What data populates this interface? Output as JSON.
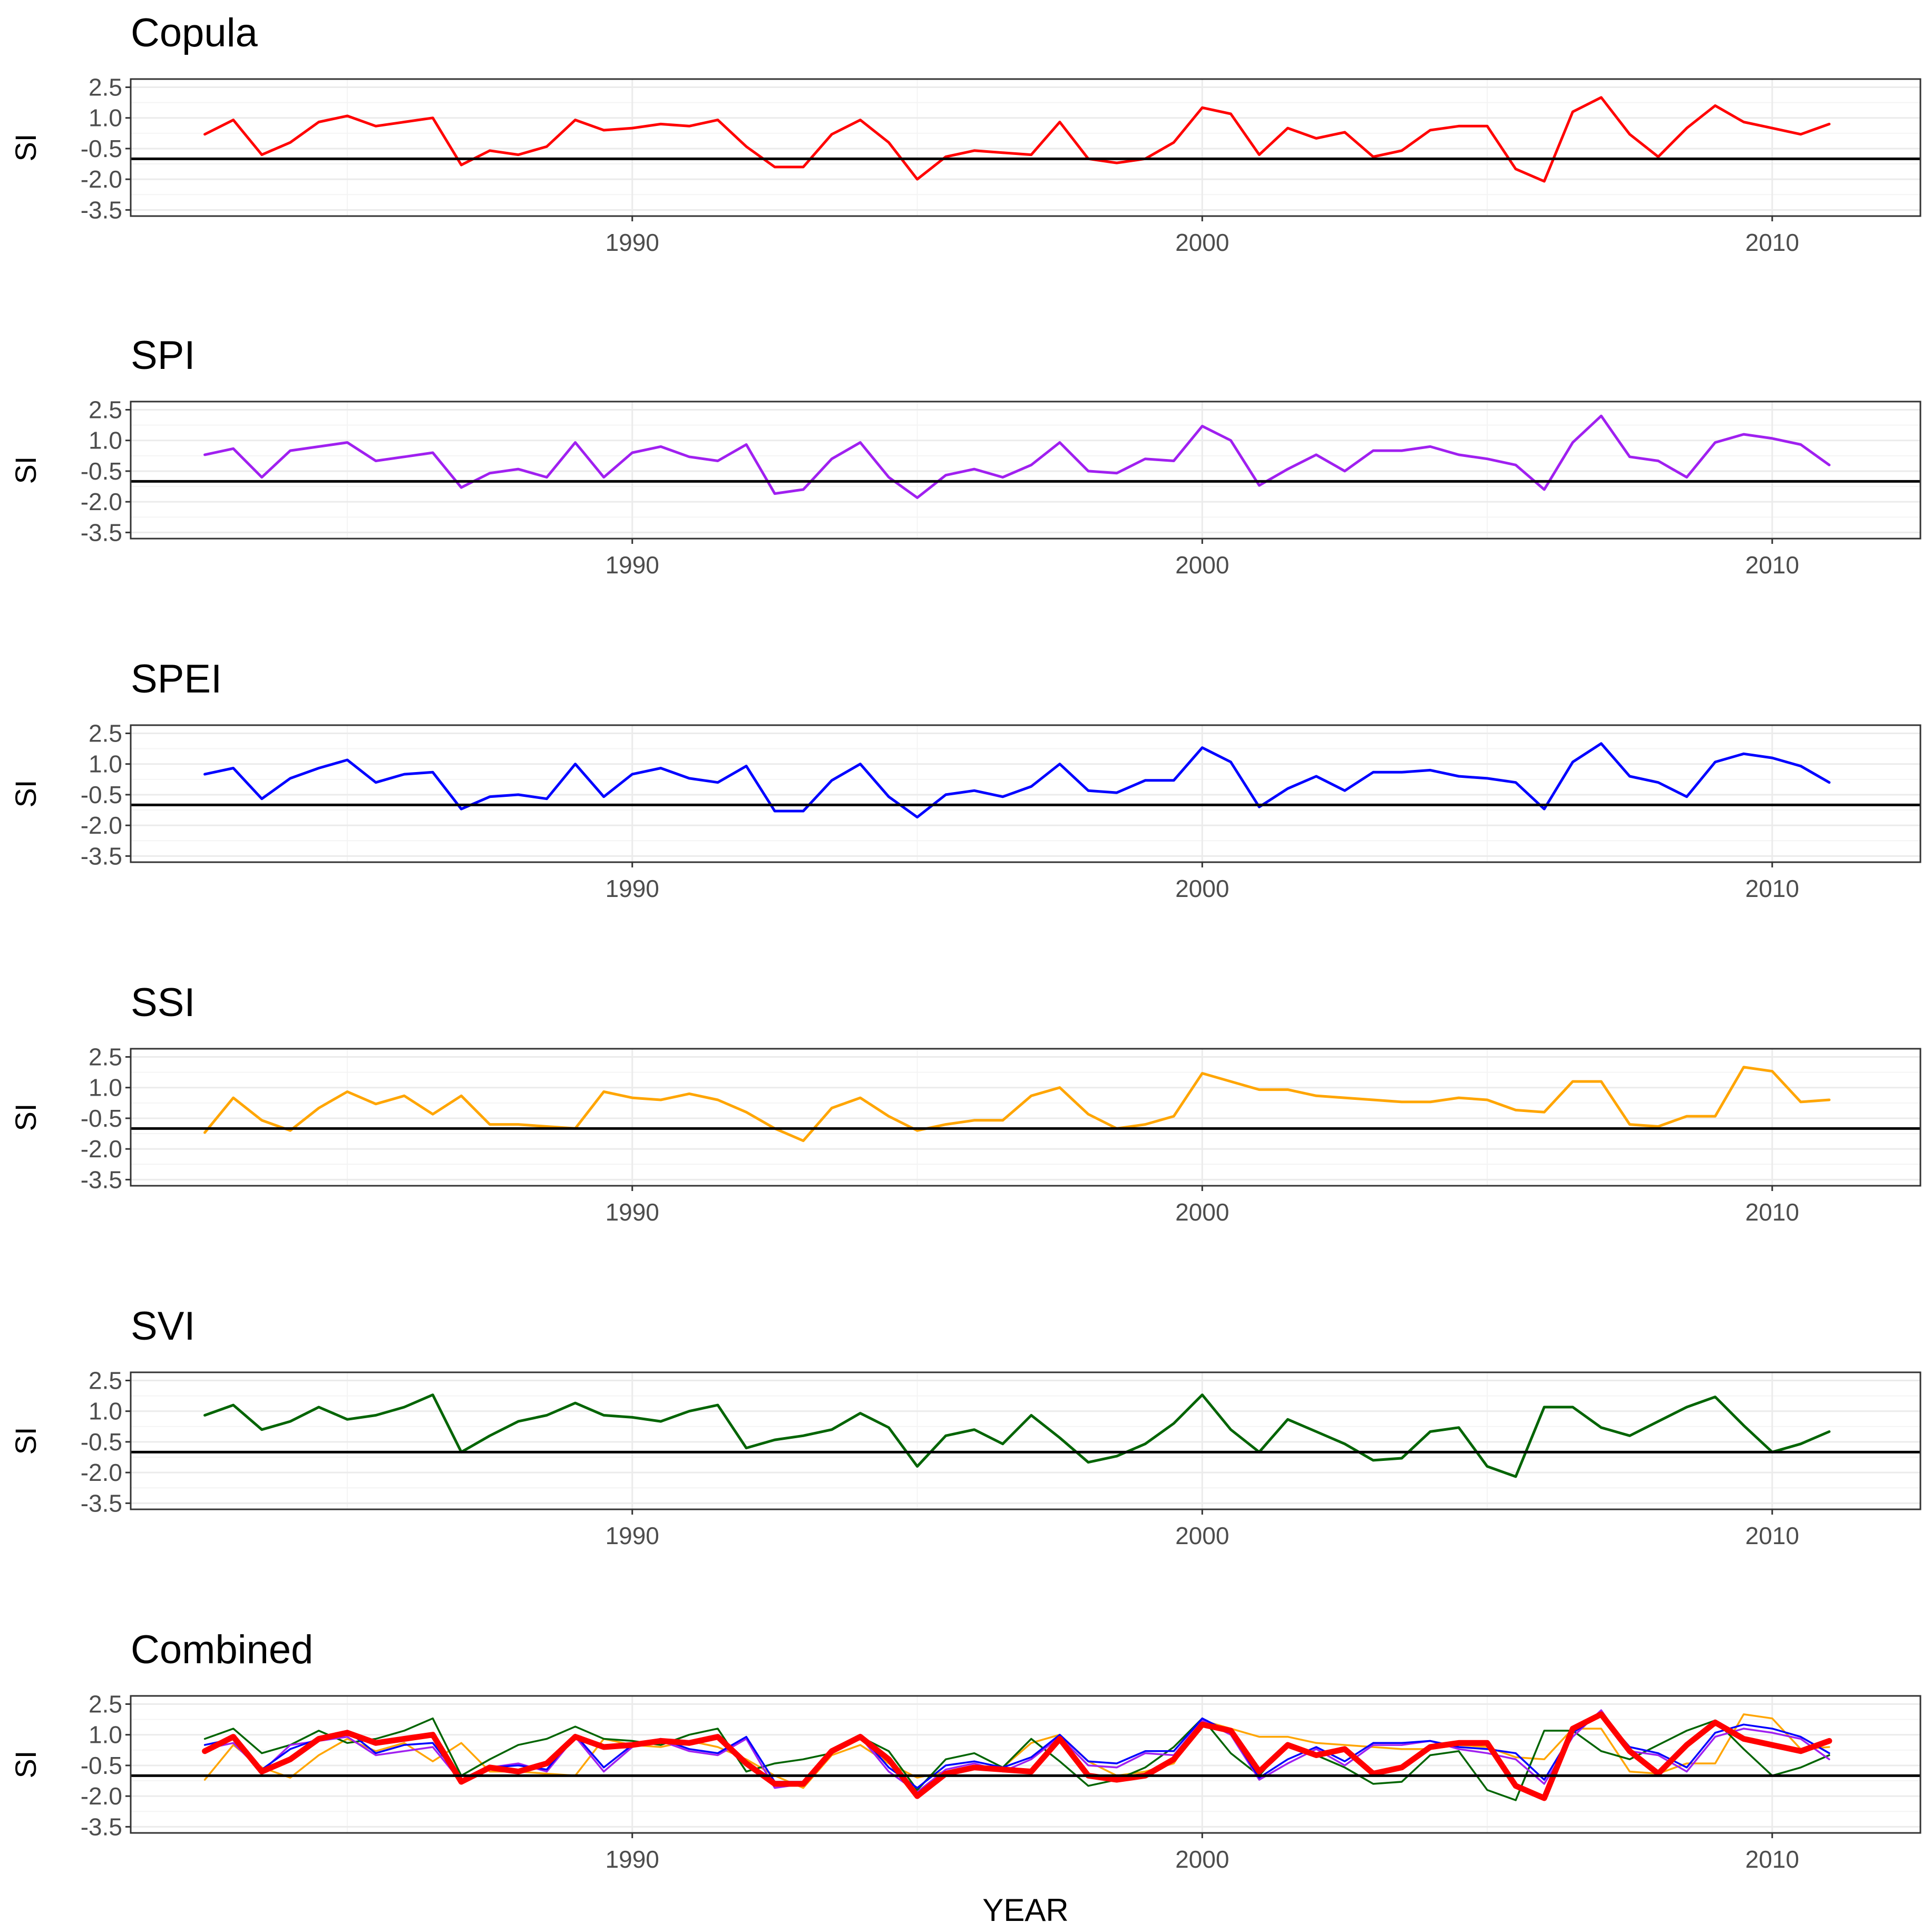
{
  "chart_data": {
    "type": "line",
    "layout": "stacked-panels",
    "xlabel": "YEAR",
    "ylabel": "SI",
    "xlim": [
      1981.2,
      2012.6
    ],
    "ylim": [
      -3.8,
      2.9
    ],
    "yticks": [
      2.5,
      1.0,
      -0.5,
      -2.0,
      -3.5
    ],
    "ytick_labels": [
      "2.5",
      "1.0",
      "-0.5",
      "-2.0",
      "-3.5"
    ],
    "xticks": [
      1990,
      2000,
      2010
    ],
    "xtick_labels": [
      "1990",
      "2000",
      "2010"
    ],
    "reference_line_y": -1.0,
    "panels": [
      {
        "title": "Copula",
        "series": [
          {
            "name": "Copula",
            "color": "#ff0000",
            "x": [
              1982.5,
              1983.0,
              1983.5,
              1984.0,
              1984.5,
              1985.0,
              1985.5,
              1986.0,
              1986.5,
              1987.0,
              1987.5,
              1988.0,
              1988.5,
              1989.0,
              1989.5,
              1990.0,
              1990.5,
              1991.0,
              1991.5,
              1992.0,
              1992.5,
              1993.0,
              1993.5,
              1994.0,
              1994.5,
              1995.0,
              1995.5,
              1996.0,
              1996.5,
              1997.0,
              1997.5,
              1998.0,
              1998.5,
              1999.0,
              1999.5,
              2000.0,
              2000.5,
              2001.0,
              2001.5,
              2002.0,
              2002.5,
              2003.0,
              2003.5,
              2004.0,
              2004.5,
              2005.0,
              2005.5,
              2006.0,
              2006.5,
              2007.0,
              2007.5,
              2008.0,
              2008.5,
              2009.0,
              2009.5,
              2010.0,
              2010.5,
              2011.0
            ],
            "values": [
              0.2,
              0.9,
              -0.8,
              -0.2,
              0.8,
              1.1,
              0.6,
              0.8,
              1.0,
              -1.3,
              -0.6,
              -0.8,
              -0.4,
              0.9,
              0.4,
              0.5,
              0.7,
              0.6,
              0.9,
              -0.4,
              -1.4,
              -1.4,
              0.2,
              0.9,
              -0.2,
              -2.0,
              -0.9,
              -0.6,
              -0.7,
              -0.8,
              0.8,
              -1.0,
              -1.2,
              -1.0,
              -0.2,
              1.5,
              1.2,
              -0.8,
              0.5,
              0.0,
              0.3,
              -0.9,
              -0.6,
              0.4,
              0.6,
              0.6,
              -1.5,
              -2.1,
              1.3,
              2.0,
              0.2,
              -0.9,
              0.5,
              1.6,
              0.8,
              0.5,
              0.2,
              0.7
            ]
          }
        ]
      },
      {
        "title": "SPI",
        "series": [
          {
            "name": "SPI",
            "color": "#a020f0",
            "x": [
              1982.5,
              1983.0,
              1983.5,
              1984.0,
              1984.5,
              1985.0,
              1985.5,
              1986.0,
              1986.5,
              1987.0,
              1987.5,
              1988.0,
              1988.5,
              1989.0,
              1989.5,
              1990.0,
              1990.5,
              1991.0,
              1991.5,
              1992.0,
              1992.5,
              1993.0,
              1993.5,
              1994.0,
              1994.5,
              1995.0,
              1995.5,
              1996.0,
              1996.5,
              1997.0,
              1997.5,
              1998.0,
              1998.5,
              1999.0,
              1999.5,
              2000.0,
              2000.5,
              2001.0,
              2001.5,
              2002.0,
              2002.5,
              2003.0,
              2003.5,
              2004.0,
              2004.5,
              2005.0,
              2005.5,
              2006.0,
              2006.5,
              2007.0,
              2007.5,
              2008.0,
              2008.5,
              2009.0,
              2009.5,
              2010.0,
              2010.5,
              2011.0
            ],
            "values": [
              0.3,
              0.6,
              -0.8,
              0.5,
              0.7,
              0.9,
              0.0,
              0.2,
              0.4,
              -1.3,
              -0.6,
              -0.4,
              -0.8,
              0.9,
              -0.8,
              0.4,
              0.7,
              0.2,
              0.0,
              0.8,
              -1.6,
              -1.4,
              0.1,
              0.9,
              -0.8,
              -1.8,
              -0.7,
              -0.4,
              -0.8,
              -0.2,
              0.9,
              -0.5,
              -0.6,
              0.1,
              0.0,
              1.7,
              1.0,
              -1.2,
              -0.4,
              0.3,
              -0.5,
              0.5,
              0.5,
              0.7,
              0.3,
              0.1,
              -0.2,
              -1.4,
              0.9,
              2.2,
              0.2,
              0.0,
              -0.8,
              0.9,
              1.3,
              1.1,
              0.8,
              -0.2
            ]
          }
        ]
      },
      {
        "title": "SPEI",
        "series": [
          {
            "name": "SPEI",
            "color": "#0000ff",
            "x": [
              1982.5,
              1983.0,
              1983.5,
              1984.0,
              1984.5,
              1985.0,
              1985.5,
              1986.0,
              1986.5,
              1987.0,
              1987.5,
              1988.0,
              1988.5,
              1989.0,
              1989.5,
              1990.0,
              1990.5,
              1991.0,
              1991.5,
              1992.0,
              1992.5,
              1993.0,
              1993.5,
              1994.0,
              1994.5,
              1995.0,
              1995.5,
              1996.0,
              1996.5,
              1997.0,
              1997.5,
              1998.0,
              1998.5,
              1999.0,
              1999.5,
              2000.0,
              2000.5,
              2001.0,
              2001.5,
              2002.0,
              2002.5,
              2003.0,
              2003.5,
              2004.0,
              2004.5,
              2005.0,
              2005.5,
              2006.0,
              2006.5,
              2007.0,
              2007.5,
              2008.0,
              2008.5,
              2009.0,
              2009.5,
              2010.0,
              2010.5,
              2011.0
            ],
            "values": [
              0.5,
              0.8,
              -0.7,
              0.3,
              0.8,
              1.2,
              0.1,
              0.5,
              0.6,
              -1.2,
              -0.6,
              -0.5,
              -0.7,
              1.0,
              -0.6,
              0.5,
              0.8,
              0.3,
              0.1,
              0.9,
              -1.3,
              -1.3,
              0.2,
              1.0,
              -0.6,
              -1.6,
              -0.5,
              -0.3,
              -0.6,
              -0.1,
              1.0,
              -0.3,
              -0.4,
              0.2,
              0.2,
              1.8,
              1.1,
              -1.1,
              -0.2,
              0.4,
              -0.3,
              0.6,
              0.6,
              0.7,
              0.4,
              0.3,
              0.1,
              -1.2,
              1.1,
              2.0,
              0.4,
              0.1,
              -0.6,
              1.1,
              1.5,
              1.3,
              0.9,
              0.1
            ]
          }
        ]
      },
      {
        "title": "SSI",
        "series": [
          {
            "name": "SSI",
            "color": "#ffa500",
            "x": [
              1982.5,
              1983.0,
              1983.5,
              1984.0,
              1984.5,
              1985.0,
              1985.5,
              1986.0,
              1986.5,
              1987.0,
              1987.5,
              1988.0,
              1988.5,
              1989.0,
              1989.5,
              1990.0,
              1990.5,
              1991.0,
              1991.5,
              1992.0,
              1992.5,
              1993.0,
              1993.5,
              1994.0,
              1994.5,
              1995.0,
              1995.5,
              1996.0,
              1996.5,
              1997.0,
              1997.5,
              1998.0,
              1998.5,
              1999.0,
              1999.5,
              2000.0,
              2000.5,
              2001.0,
              2001.5,
              2002.0,
              2002.5,
              2003.0,
              2003.5,
              2004.0,
              2004.5,
              2005.0,
              2005.5,
              2006.0,
              2006.5,
              2007.0,
              2007.5,
              2008.0,
              2008.5,
              2009.0,
              2009.5,
              2010.0,
              2010.5,
              2011.0
            ],
            "values": [
              -1.2,
              0.5,
              -0.6,
              -1.1,
              0.0,
              0.8,
              0.2,
              0.6,
              -0.3,
              0.6,
              -0.8,
              -0.8,
              -0.9,
              -1.0,
              0.8,
              0.5,
              0.4,
              0.7,
              0.4,
              -0.2,
              -1.0,
              -1.6,
              0.0,
              0.5,
              -0.4,
              -1.1,
              -0.8,
              -0.6,
              -0.6,
              0.6,
              1.0,
              -0.3,
              -1.0,
              -0.8,
              -0.4,
              1.7,
              1.3,
              0.9,
              0.9,
              0.6,
              0.5,
              0.4,
              0.3,
              0.3,
              0.5,
              0.4,
              -0.1,
              -0.2,
              1.3,
              1.3,
              -0.8,
              -0.9,
              -0.4,
              -0.4,
              2.0,
              1.8,
              0.3,
              0.4
            ]
          }
        ]
      },
      {
        "title": "SVI",
        "series": [
          {
            "name": "SVI",
            "color": "#006400",
            "x": [
              1982.5,
              1983.0,
              1983.5,
              1984.0,
              1984.5,
              1985.0,
              1985.5,
              1986.0,
              1986.5,
              1987.0,
              1987.5,
              1988.0,
              1988.5,
              1989.0,
              1989.5,
              1990.0,
              1990.5,
              1991.0,
              1991.5,
              1992.0,
              1992.5,
              1993.0,
              1993.5,
              1994.0,
              1994.5,
              1995.0,
              1995.5,
              1996.0,
              1996.5,
              1997.0,
              1997.5,
              1998.0,
              1998.5,
              1999.0,
              1999.5,
              2000.0,
              2000.5,
              2001.0,
              2001.5,
              2002.0,
              2002.5,
              2003.0,
              2003.5,
              2004.0,
              2004.5,
              2005.0,
              2005.5,
              2006.0,
              2006.5,
              2007.0,
              2007.5,
              2008.0,
              2008.5,
              2009.0,
              2009.5,
              2010.0,
              2010.5,
              2011.0
            ],
            "values": [
              0.8,
              1.3,
              0.1,
              0.5,
              1.2,
              0.6,
              0.8,
              1.2,
              1.8,
              -1.0,
              -0.2,
              0.5,
              0.8,
              1.4,
              0.8,
              0.7,
              0.5,
              1.0,
              1.3,
              -0.8,
              -0.4,
              -0.2,
              0.1,
              0.9,
              0.2,
              -1.7,
              -0.2,
              0.1,
              -0.6,
              0.8,
              -0.3,
              -1.5,
              -1.2,
              -0.6,
              0.4,
              1.8,
              0.1,
              -1.0,
              0.6,
              0.0,
              -0.6,
              -1.4,
              -1.3,
              0.0,
              0.2,
              -1.7,
              -2.2,
              1.2,
              1.2,
              0.2,
              -0.2,
              0.5,
              1.2,
              1.7,
              0.3,
              -1.0,
              -0.6,
              0.0
            ]
          }
        ]
      },
      {
        "title": "Combined",
        "series": [
          {
            "name": "SSI",
            "color": "#ffa500",
            "ref": "SSI"
          },
          {
            "name": "SVI",
            "color": "#006400",
            "ref": "SVI"
          },
          {
            "name": "SPI",
            "color": "#a020f0",
            "ref": "SPI"
          },
          {
            "name": "SPEI",
            "color": "#0000ff",
            "ref": "SPEI"
          },
          {
            "name": "Copula",
            "color": "#ff0000",
            "ref": "Copula",
            "emphasis": true
          }
        ]
      }
    ]
  }
}
